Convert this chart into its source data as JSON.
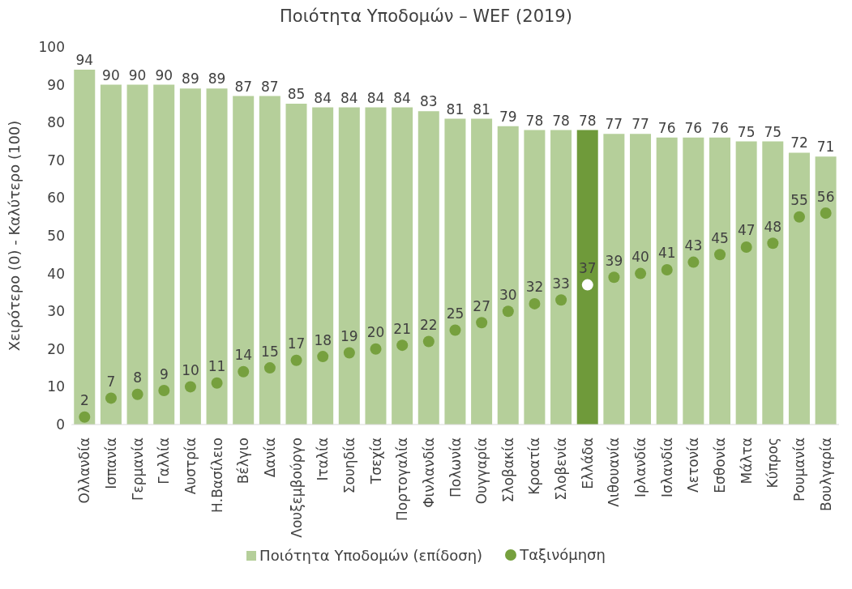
{
  "chart_data": {
    "type": "bar",
    "title": "Ποιότητα Υποδομών – WEF (2019)",
    "ylabel": "Χειρότερο (0) - Καλύτερο (100)",
    "categories": [
      "Ολλανδία",
      "Ισπανία",
      "Γερμανία",
      "Γαλλία",
      "Αυστρία",
      "Η.Βασίλειο",
      "Βέλγιο",
      "Δανία",
      "Λουξεμβούργο",
      "Ιταλία",
      "Σουηδία",
      "Τσεχία",
      "Πορτογαλία",
      "Φινλανδία",
      "Πολωνία",
      "Ουγγαρία",
      "Σλοβακία",
      "Κροατία",
      "Σλοβενία",
      "Ελλάδα",
      "Λιθουανία",
      "Ιρλανδία",
      "Ισλανδία",
      "Λετονία",
      "Εσθονία",
      "Μάλτα",
      "Κύπρος",
      "Ρουμανία",
      "Βουλγαρία"
    ],
    "series": [
      {
        "name": "Ποιότητα Υποδομών (επίδοση)",
        "color": "#b5cf9a",
        "colors": [
          "#b5cf9a",
          "#b5cf9a",
          "#b5cf9a",
          "#b5cf9a",
          "#b5cf9a",
          "#b5cf9a",
          "#b5cf9a",
          "#b5cf9a",
          "#b5cf9a",
          "#b5cf9a",
          "#b5cf9a",
          "#b5cf9a",
          "#b5cf9a",
          "#b5cf9a",
          "#b5cf9a",
          "#b5cf9a",
          "#b5cf9a",
          "#b5cf9a",
          "#b5cf9a",
          "#6f9a3a",
          "#b5cf9a",
          "#b5cf9a",
          "#b5cf9a",
          "#b5cf9a",
          "#b5cf9a",
          "#b5cf9a",
          "#b5cf9a",
          "#b5cf9a",
          "#b5cf9a"
        ],
        "values": [
          94,
          90,
          90,
          90,
          89,
          89,
          87,
          87,
          85,
          84,
          84,
          84,
          84,
          83,
          81,
          81,
          79,
          78,
          78,
          78,
          77,
          77,
          76,
          76,
          76,
          75,
          75,
          72,
          71
        ]
      },
      {
        "name": "Ταξινόμηση",
        "type": "scatter",
        "color": "#76a03e",
        "colors": [
          "#76a03e",
          "#76a03e",
          "#76a03e",
          "#76a03e",
          "#76a03e",
          "#76a03e",
          "#76a03e",
          "#76a03e",
          "#76a03e",
          "#76a03e",
          "#76a03e",
          "#76a03e",
          "#76a03e",
          "#76a03e",
          "#76a03e",
          "#76a03e",
          "#76a03e",
          "#76a03e",
          "#76a03e",
          "#ffffff",
          "#76a03e",
          "#76a03e",
          "#76a03e",
          "#76a03e",
          "#76a03e",
          "#76a03e",
          "#76a03e",
          "#76a03e",
          "#76a03e"
        ],
        "values": [
          2,
          7,
          8,
          9,
          10,
          11,
          14,
          15,
          17,
          18,
          19,
          20,
          21,
          22,
          25,
          27,
          30,
          32,
          33,
          37,
          39,
          40,
          41,
          43,
          45,
          47,
          48,
          55,
          56
        ]
      }
    ],
    "ylim": [
      0,
      100
    ],
    "yticks": [
      0,
      10,
      20,
      30,
      40,
      50,
      60,
      70,
      80,
      90,
      100
    ],
    "legend": "bottom",
    "marker": "circle",
    "data_labels": true
  }
}
